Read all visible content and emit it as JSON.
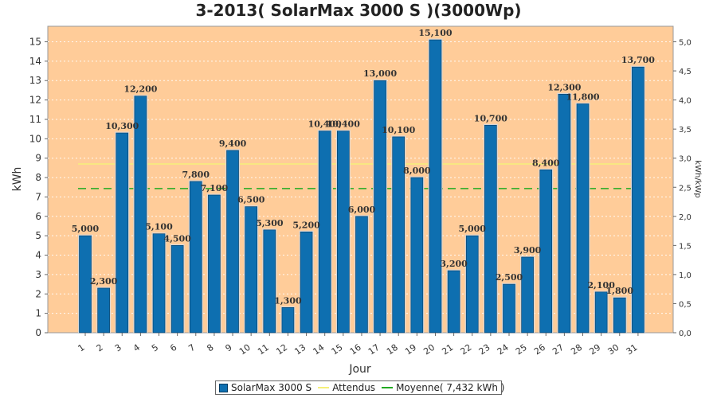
{
  "chart_data": {
    "type": "bar",
    "title": "3-2013( SolarMax 3000 S )(3000Wp)",
    "xlabel": "Jour",
    "ylabel": "kWh",
    "y2label": "kWh/kWp",
    "ylim": [
      0,
      15.8
    ],
    "y2lim": [
      0,
      5.267
    ],
    "yticks": [
      "0",
      "1",
      "2",
      "3",
      "4",
      "5",
      "6",
      "7",
      "8",
      "9",
      "10",
      "11",
      "12",
      "13",
      "14",
      "15"
    ],
    "y2ticks": [
      "0,0",
      "0,5",
      "1,0",
      "1,5",
      "2,0",
      "2,5",
      "3,0",
      "3,5",
      "4,0",
      "4,5",
      "5,0"
    ],
    "categories": [
      "1",
      "2",
      "3",
      "4",
      "5",
      "6",
      "7",
      "8",
      "9",
      "10",
      "11",
      "12",
      "13",
      "14",
      "15",
      "16",
      "17",
      "18",
      "19",
      "20",
      "21",
      "22",
      "23",
      "24",
      "25",
      "26",
      "27",
      "28",
      "29",
      "30",
      "31"
    ],
    "series": [
      {
        "name": "SolarMax 3000 S",
        "values": [
          5.0,
          2.3,
          10.3,
          12.2,
          5.1,
          4.5,
          7.8,
          7.1,
          9.4,
          6.5,
          5.3,
          1.3,
          5.2,
          10.4,
          10.4,
          6.0,
          13.0,
          10.1,
          8.0,
          15.1,
          3.2,
          5.0,
          10.7,
          2.5,
          3.9,
          8.4,
          12.3,
          11.8,
          2.1,
          1.8,
          13.7
        ],
        "labels": [
          "5,000",
          "2,300",
          "10,300",
          "12,200",
          "5,100",
          "4,500",
          "7,800",
          "7,100",
          "9,400",
          "6,500",
          "5,300",
          "1,300",
          "5,200",
          "10,400",
          "10,400",
          "6,000",
          "13,000",
          "10,100",
          "8,000",
          "15,100",
          "3,200",
          "5,000",
          "10,700",
          "2,500",
          "3,900",
          "8,400",
          "12,300",
          "11,800",
          "2,100",
          "1,800",
          "13,700"
        ],
        "color": "#0e6fb0"
      }
    ],
    "lines": [
      {
        "name": "Attendus",
        "value": 8.7,
        "color": "#f5f07a",
        "dashed": false
      },
      {
        "name": "Moyenne( 7,432 kWh )",
        "value": 7.432,
        "color": "#22aa22",
        "dashed": true
      }
    ],
    "background": "#ffcc99",
    "grid": true,
    "legend_position": "bottom"
  }
}
